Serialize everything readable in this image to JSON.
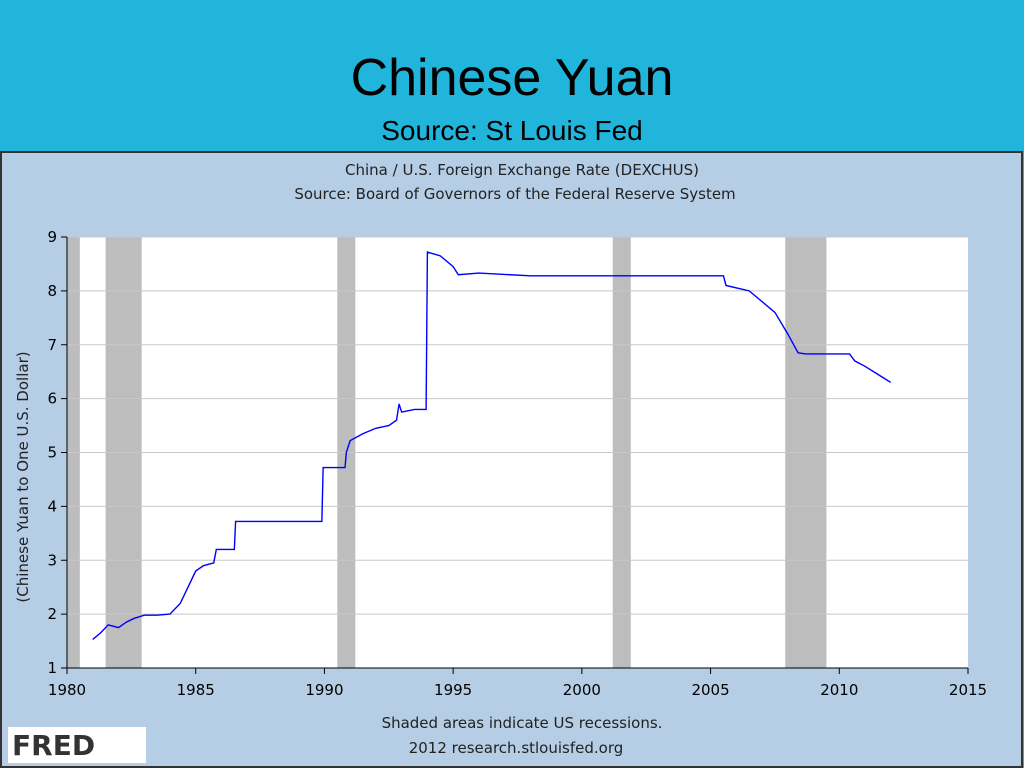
{
  "slide": {
    "title": "Chinese Yuan",
    "subtitle": "Source: St Louis Fed"
  },
  "chart_data": {
    "type": "line",
    "title": "China / U.S. Foreign Exchange Rate (DEXCHUS)",
    "subtitle": "Source: Board of Governors of the Federal Reserve System",
    "y_label": "(Chinese Yuan to One U.S. Dollar)",
    "notes": [
      "Shaded areas indicate US recessions.",
      "2012 research.stlouisfed.org"
    ],
    "logo": "FRED",
    "xlim": [
      1980,
      2015
    ],
    "xticks": [
      1980,
      1985,
      1990,
      1995,
      2000,
      2005,
      2010,
      2015
    ],
    "ylim": [
      1,
      9
    ],
    "yticks": [
      1,
      2,
      3,
      4,
      5,
      6,
      7,
      8,
      9
    ],
    "grid": true,
    "recessions": [
      [
        1980.0,
        1980.5
      ],
      [
        1981.5,
        1982.9
      ],
      [
        1990.5,
        1991.2
      ],
      [
        2001.2,
        2001.9
      ],
      [
        2007.9,
        2009.5
      ]
    ],
    "recession_color": "#bdbdbd",
    "x": [
      1981.0,
      1981.3,
      1981.6,
      1982.0,
      1982.3,
      1982.6,
      1983.0,
      1983.5,
      1984.0,
      1984.4,
      1984.8,
      1985.0,
      1985.3,
      1985.7,
      1985.8,
      1986.2,
      1986.5,
      1986.55,
      1989.9,
      1989.95,
      1990.8,
      1990.85,
      1991.0,
      1991.5,
      1992.0,
      1992.5,
      1992.8,
      1992.9,
      1993.0,
      1993.5,
      1993.95,
      1994.0,
      1994.5,
      1995.0,
      1995.2,
      1996.0,
      1998.0,
      2005.5,
      2005.6,
      2006.5,
      2007.0,
      2007.5,
      2008.0,
      2008.4,
      2008.7,
      2010.4,
      2010.6,
      2011.0,
      2011.5,
      2012.0
    ],
    "series": [
      {
        "name": "DEXCHUS",
        "color": "#0000ff",
        "values": [
          1.53,
          1.65,
          1.8,
          1.75,
          1.85,
          1.92,
          1.98,
          1.98,
          2.0,
          2.2,
          2.6,
          2.8,
          2.9,
          2.95,
          3.2,
          3.2,
          3.2,
          3.72,
          3.72,
          4.72,
          4.72,
          5.0,
          5.22,
          5.35,
          5.45,
          5.5,
          5.6,
          5.9,
          5.75,
          5.8,
          5.8,
          8.72,
          8.65,
          8.45,
          8.3,
          8.33,
          8.28,
          8.28,
          8.1,
          8.0,
          7.8,
          7.6,
          7.2,
          6.85,
          6.83,
          6.83,
          6.7,
          6.6,
          6.45,
          6.3
        ]
      }
    ]
  }
}
